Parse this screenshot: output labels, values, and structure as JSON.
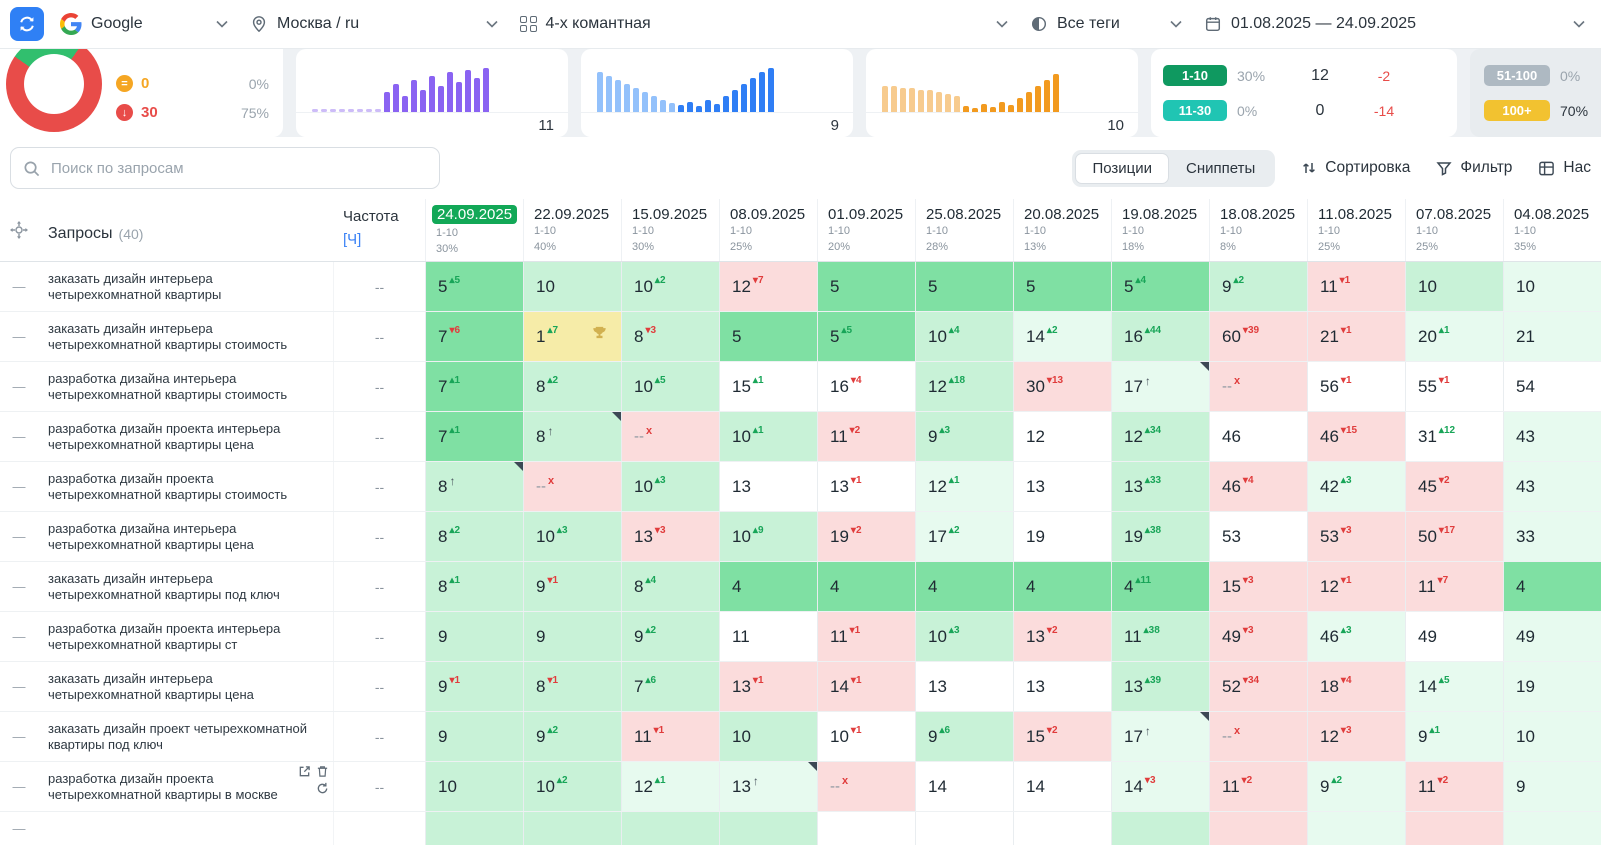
{
  "topbar": {
    "search_engine": "Google",
    "region": "Москва / ru",
    "project": "4-х комантная",
    "tags": "Все теги",
    "date_range": "01.08.2025 — 24.09.2025"
  },
  "summary": {
    "donut": {
      "red_share": 75,
      "green_share": 25
    },
    "stats": [
      {
        "icon": "orange-circle-icon",
        "value": "0",
        "pct": "0%"
      },
      {
        "icon": "red-down-circle-icon",
        "value": "30",
        "pct": "75%"
      }
    ],
    "sparklines": [
      {
        "value": "11",
        "color": "#8a63f2",
        "faded_color": "#cdbcf8",
        "faded": 8,
        "dotted": true,
        "heights": [
          3,
          3,
          3,
          3,
          3,
          3,
          3,
          3,
          20,
          28,
          16,
          32,
          22,
          36,
          26,
          40,
          30,
          42,
          34,
          44
        ]
      },
      {
        "value": "9",
        "color": "#2f7ef5",
        "faded_color": "#93c1fb",
        "faded": 9,
        "dotted": false,
        "heights": [
          40,
          36,
          32,
          28,
          24,
          20,
          16,
          12,
          9,
          7,
          10,
          6,
          12,
          8,
          16,
          22,
          28,
          34,
          40,
          44
        ]
      },
      {
        "value": "10",
        "color": "#f29a1f",
        "faded_color": "#f7cb8e",
        "faded": 9,
        "dotted": false,
        "heights": [
          26,
          26,
          24,
          24,
          22,
          22,
          20,
          18,
          16,
          6,
          4,
          8,
          5,
          10,
          7,
          14,
          20,
          26,
          32,
          38
        ]
      }
    ],
    "badges_main": [
      {
        "range": "1-10",
        "color": "#0f9960",
        "pct": "30%",
        "count": "12",
        "delta": "-2"
      },
      {
        "range": "11-30",
        "color": "#20c5b3",
        "pct": "0%",
        "count": "0",
        "delta": "-14"
      }
    ],
    "badges_side": [
      {
        "range": "51-100",
        "color": "#aeb9c2",
        "pct": "0%"
      },
      {
        "range": "100+",
        "color": "#f2c230",
        "pct": "70%"
      }
    ]
  },
  "toolbar": {
    "search_placeholder": "Поиск по запросам",
    "tabs": [
      {
        "label": "Позиции",
        "active": true
      },
      {
        "label": "Сниппеты",
        "active": false
      }
    ],
    "sort_label": "Сортировка",
    "filter_label": "Фильтр",
    "settings_label": "Нас"
  },
  "table": {
    "header": {
      "queries_label": "Запросы",
      "queries_count": "(40)",
      "freq_label": "Частота",
      "freq_unit": "[Ч]"
    },
    "row_dash": "—",
    "dates": [
      {
        "date": "24.09.2025",
        "range": "1-10",
        "pct": "30%",
        "current": true
      },
      {
        "date": "22.09.2025",
        "range": "1-10",
        "pct": "40%"
      },
      {
        "date": "15.09.2025",
        "range": "1-10",
        "pct": "30%"
      },
      {
        "date": "08.09.2025",
        "range": "1-10",
        "pct": "25%"
      },
      {
        "date": "01.09.2025",
        "range": "1-10",
        "pct": "20%"
      },
      {
        "date": "25.08.2025",
        "range": "1-10",
        "pct": "28%"
      },
      {
        "date": "20.08.2025",
        "range": "1-10",
        "pct": "13%"
      },
      {
        "date": "19.08.2025",
        "range": "1-10",
        "pct": "18%"
      },
      {
        "date": "18.08.2025",
        "range": "1-10",
        "pct": "8%"
      },
      {
        "date": "11.08.2025",
        "range": "1-10",
        "pct": "25%"
      },
      {
        "date": "07.08.2025",
        "range": "1-10",
        "pct": "25%"
      },
      {
        "date": "04.08.2025",
        "range": "1-10",
        "pct": "35%"
      }
    ],
    "rows": [
      {
        "query": "заказать дизайн интерьера четырехкомнатной квартиры",
        "freq": "--",
        "cells": [
          [
            "5",
            "5",
            "u",
            "g1"
          ],
          [
            "10",
            "",
            "",
            "g2"
          ],
          [
            "10",
            "2",
            "u",
            "g2"
          ],
          [
            "12",
            "7",
            "d",
            "p"
          ],
          [
            "5",
            "",
            "",
            "g1"
          ],
          [
            "5",
            "",
            "",
            "g1"
          ],
          [
            "5",
            "",
            "",
            "g1"
          ],
          [
            "5",
            "4",
            "u",
            "g1"
          ],
          [
            "9",
            "2",
            "u",
            "g2"
          ],
          [
            "11",
            "1",
            "d",
            "p"
          ],
          [
            "10",
            "",
            "",
            "g2"
          ],
          [
            "10",
            "",
            "",
            "g3"
          ]
        ]
      },
      {
        "query": "заказать дизайн интерьера четырехкомнатной квартиры стоимость",
        "freq": "--",
        "cells": [
          [
            "7",
            "6",
            "d",
            "g1"
          ],
          [
            "1",
            "7",
            "u",
            "y",
            "t"
          ],
          [
            "8",
            "3",
            "d",
            "g2"
          ],
          [
            "5",
            "",
            "",
            "g1"
          ],
          [
            "5",
            "5",
            "u",
            "g1"
          ],
          [
            "10",
            "4",
            "u",
            "g2"
          ],
          [
            "14",
            "2",
            "u",
            "g3"
          ],
          [
            "16",
            "44",
            "u",
            "g2"
          ],
          [
            "60",
            "39",
            "d",
            "p"
          ],
          [
            "21",
            "1",
            "d",
            "p"
          ],
          [
            "20",
            "1",
            "u",
            "g3"
          ],
          [
            "21",
            "",
            "",
            "g3"
          ]
        ]
      },
      {
        "query": "разработка дизайна интерьера четырехкомнатной квартиры стоимость",
        "freq": "--",
        "cells": [
          [
            "7",
            "1",
            "u",
            "g1"
          ],
          [
            "8",
            "2",
            "u",
            "g2"
          ],
          [
            "10",
            "5",
            "u",
            "g2"
          ],
          [
            "15",
            "1",
            "u",
            "w"
          ],
          [
            "16",
            "4",
            "d",
            "w"
          ],
          [
            "12",
            "18",
            "u",
            "g2"
          ],
          [
            "30",
            "13",
            "d",
            "p"
          ],
          [
            "17",
            "",
            "a",
            "g3",
            "c"
          ],
          [
            "--",
            "",
            "x",
            "p"
          ],
          [
            "56",
            "1",
            "d",
            "w"
          ],
          [
            "55",
            "1",
            "d",
            "w"
          ],
          [
            "54",
            "",
            "",
            "w"
          ]
        ]
      },
      {
        "query": "разработка дизайн проекта интерьера четырехкомнатной квартиры цена",
        "freq": "--",
        "cells": [
          [
            "7",
            "1",
            "u",
            "g1"
          ],
          [
            "8",
            "",
            "a",
            "g2",
            "c"
          ],
          [
            "--",
            "",
            "x",
            "p"
          ],
          [
            "10",
            "1",
            "u",
            "g2"
          ],
          [
            "11",
            "2",
            "d",
            "p"
          ],
          [
            "9",
            "3",
            "u",
            "g2"
          ],
          [
            "12",
            "",
            "",
            "w"
          ],
          [
            "12",
            "34",
            "u",
            "g2"
          ],
          [
            "46",
            "",
            "",
            "w"
          ],
          [
            "46",
            "15",
            "d",
            "p"
          ],
          [
            "31",
            "12",
            "u",
            "w"
          ],
          [
            "43",
            "",
            "",
            "g3"
          ]
        ]
      },
      {
        "query": "разработка дизайн проекта четырехкомнатной квартиры стоимость",
        "freq": "--",
        "cells": [
          [
            "8",
            "",
            "a",
            "g2",
            "c"
          ],
          [
            "--",
            "",
            "x",
            "p"
          ],
          [
            "10",
            "3",
            "u",
            "g2"
          ],
          [
            "13",
            "",
            "",
            "w"
          ],
          [
            "13",
            "1",
            "d",
            "w"
          ],
          [
            "12",
            "1",
            "u",
            "g3"
          ],
          [
            "13",
            "",
            "",
            "w"
          ],
          [
            "13",
            "33",
            "u",
            "g2"
          ],
          [
            "46",
            "4",
            "d",
            "p"
          ],
          [
            "42",
            "3",
            "u",
            "g3"
          ],
          [
            "45",
            "2",
            "d",
            "p"
          ],
          [
            "43",
            "",
            "",
            "g3"
          ]
        ]
      },
      {
        "query": "разработка дизайна интерьера четырехкомнатной квартиры цена",
        "freq": "--",
        "cells": [
          [
            "8",
            "2",
            "u",
            "g2"
          ],
          [
            "10",
            "3",
            "u",
            "g2"
          ],
          [
            "13",
            "3",
            "d",
            "p"
          ],
          [
            "10",
            "9",
            "u",
            "g2"
          ],
          [
            "19",
            "2",
            "d",
            "p"
          ],
          [
            "17",
            "2",
            "u",
            "g3"
          ],
          [
            "19",
            "",
            "",
            "w"
          ],
          [
            "19",
            "38",
            "u",
            "g2"
          ],
          [
            "53",
            "",
            "",
            "w"
          ],
          [
            "53",
            "3",
            "d",
            "p"
          ],
          [
            "50",
            "17",
            "d",
            "p"
          ],
          [
            "33",
            "",
            "",
            "g3"
          ]
        ]
      },
      {
        "query": "заказать дизайн интерьера четырехкомнатной квартиры под ключ",
        "freq": "--",
        "cells": [
          [
            "8",
            "1",
            "u",
            "g2"
          ],
          [
            "9",
            "1",
            "d",
            "g2"
          ],
          [
            "8",
            "4",
            "u",
            "g2"
          ],
          [
            "4",
            "",
            "",
            "g1"
          ],
          [
            "4",
            "",
            "",
            "g1"
          ],
          [
            "4",
            "",
            "",
            "g1"
          ],
          [
            "4",
            "",
            "",
            "g1"
          ],
          [
            "4",
            "11",
            "u",
            "g1"
          ],
          [
            "15",
            "3",
            "d",
            "p"
          ],
          [
            "12",
            "1",
            "d",
            "p"
          ],
          [
            "11",
            "7",
            "d",
            "p"
          ],
          [
            "4",
            "",
            "",
            "g1"
          ]
        ]
      },
      {
        "query": "разработка дизайн проекта интерьера четырехкомнатной квартиры ст",
        "freq": "--",
        "cells": [
          [
            "9",
            "",
            "",
            "g2"
          ],
          [
            "9",
            "",
            "",
            "g2"
          ],
          [
            "9",
            "2",
            "u",
            "g2"
          ],
          [
            "11",
            "",
            "",
            "w"
          ],
          [
            "11",
            "1",
            "d",
            "p"
          ],
          [
            "10",
            "3",
            "u",
            "g2"
          ],
          [
            "13",
            "2",
            "d",
            "p"
          ],
          [
            "11",
            "38",
            "u",
            "g2"
          ],
          [
            "49",
            "3",
            "d",
            "p"
          ],
          [
            "46",
            "3",
            "u",
            "g3"
          ],
          [
            "49",
            "",
            "",
            "w"
          ],
          [
            "49",
            "",
            "",
            "g3"
          ]
        ]
      },
      {
        "query": "заказать дизайн интерьера четырехкомнатной квартиры цена",
        "freq": "--",
        "cells": [
          [
            "9",
            "1",
            "d",
            "g2"
          ],
          [
            "8",
            "1",
            "d",
            "g2"
          ],
          [
            "7",
            "6",
            "u",
            "g2"
          ],
          [
            "13",
            "1",
            "d",
            "p"
          ],
          [
            "14",
            "1",
            "d",
            "p"
          ],
          [
            "13",
            "",
            "",
            "w"
          ],
          [
            "13",
            "",
            "",
            "w"
          ],
          [
            "13",
            "39",
            "u",
            "g2"
          ],
          [
            "52",
            "34",
            "d",
            "p"
          ],
          [
            "18",
            "4",
            "d",
            "p"
          ],
          [
            "14",
            "5",
            "u",
            "g3"
          ],
          [
            "19",
            "",
            "",
            "g3"
          ]
        ]
      },
      {
        "query": "заказать дизайн проект четырехкомнатной квартиры под ключ",
        "freq": "--",
        "cells": [
          [
            "9",
            "",
            "",
            "g2"
          ],
          [
            "9",
            "2",
            "u",
            "g2"
          ],
          [
            "11",
            "1",
            "d",
            "p"
          ],
          [
            "10",
            "",
            "",
            "g2"
          ],
          [
            "10",
            "1",
            "d",
            "w"
          ],
          [
            "9",
            "6",
            "u",
            "g2"
          ],
          [
            "15",
            "2",
            "d",
            "p"
          ],
          [
            "17",
            "",
            "a",
            "g3",
            "c"
          ],
          [
            "--",
            "",
            "x",
            "p"
          ],
          [
            "12",
            "3",
            "d",
            "p"
          ],
          [
            "9",
            "1",
            "u",
            "g3"
          ],
          [
            "10",
            "",
            "",
            "g3"
          ]
        ]
      },
      {
        "query": "разработка дизайн проекта четырехкомнатной квартиры в москве",
        "freq": "--",
        "icons": true,
        "cells": [
          [
            "10",
            "",
            "",
            "g2"
          ],
          [
            "10",
            "2",
            "u",
            "g2"
          ],
          [
            "12",
            "1",
            "u",
            "g3"
          ],
          [
            "13",
            "",
            "a",
            "g3",
            "c"
          ],
          [
            "--",
            "",
            "x",
            "p"
          ],
          [
            "14",
            "",
            "",
            "w"
          ],
          [
            "14",
            "",
            "",
            "w"
          ],
          [
            "14",
            "3",
            "d",
            "g3"
          ],
          [
            "11",
            "2",
            "d",
            "p"
          ],
          [
            "9",
            "2",
            "u",
            "g3"
          ],
          [
            "11",
            "2",
            "d",
            "p"
          ],
          [
            "9",
            "",
            "",
            "g3"
          ]
        ]
      }
    ],
    "clipped_row_bgs": [
      "g2",
      "g2",
      "g2",
      "g2",
      "w",
      "w",
      "w",
      "g2",
      "p",
      "g3",
      "p",
      "g3"
    ]
  },
  "colors": {
    "accent_blue": "#2f80f5",
    "cell_green_strong": "#7fe0a3",
    "cell_green_light": "#c8f2d7",
    "cell_green_pale": "#e7faef",
    "cell_pink": "#fbdcdc",
    "cell_yellow": "#f6eca8",
    "header_pill_green": "#12a857",
    "delta_up": "#18a558",
    "delta_down": "#e03c3c"
  },
  "icons": [
    "sync-icon",
    "google-logo",
    "location-pin-icon",
    "project-grid-icon",
    "tags-toggle-icon",
    "calendar-icon",
    "chevron-down-icon",
    "search-icon",
    "sort-icon",
    "filter-funnel-icon",
    "table-settings-icon",
    "move-crosshair-icon",
    "trophy-icon",
    "open-link-icon",
    "trash-icon",
    "refresh-icon"
  ]
}
